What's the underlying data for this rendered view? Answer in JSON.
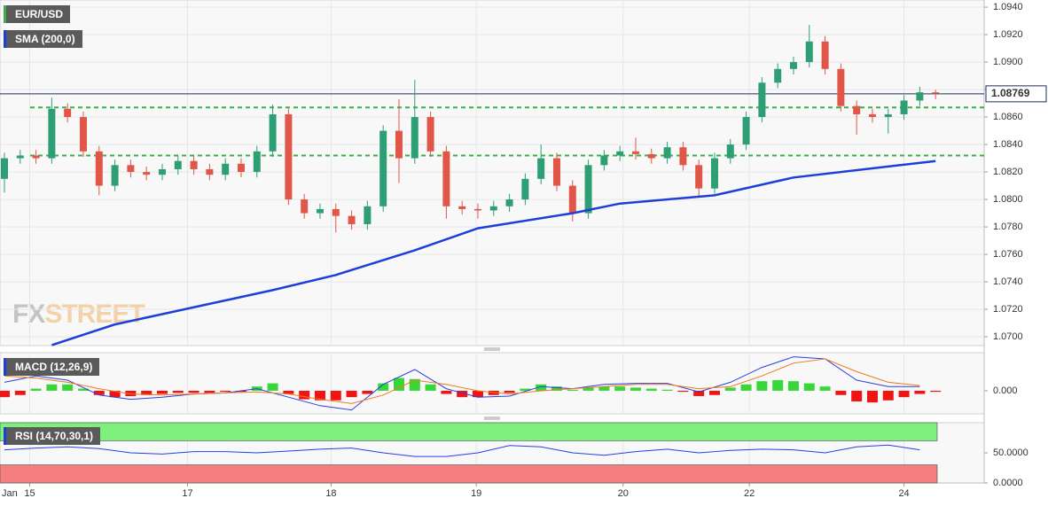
{
  "chart_data": [
    {
      "type": "candlestick",
      "name": "EUR/USD",
      "up_color": "#2e9e74",
      "down_color": "#e0574a",
      "open": [
        1.0815,
        1.083,
        1.0832,
        1.083,
        1.0866,
        1.086,
        1.0835,
        1.081,
        1.0825,
        1.082,
        1.0818,
        1.0822,
        1.0828,
        1.0822,
        1.0818,
        1.0826,
        1.082,
        1.0835,
        1.0862,
        1.08,
        1.079,
        1.0793,
        1.0788,
        1.0782,
        1.0795,
        1.085,
        1.083,
        1.086,
        1.0835,
        1.0795,
        1.0793,
        1.0792,
        1.0795,
        1.08,
        1.0815,
        1.083,
        1.081,
        1.079,
        1.0825,
        1.0832,
        1.0835,
        1.0833,
        1.083,
        1.0838,
        1.0825,
        1.0808,
        1.083,
        1.084,
        1.086,
        1.0885,
        1.0895,
        1.09,
        1.0915,
        1.0895,
        1.0868,
        1.0862,
        1.086,
        1.0862,
        1.0872,
        1.0878
      ],
      "high": [
        1.0834,
        1.0836,
        1.0836,
        1.0874,
        1.087,
        1.0864,
        1.0839,
        1.0829,
        1.0829,
        1.0824,
        1.0826,
        1.0832,
        1.0832,
        1.0826,
        1.083,
        1.083,
        1.0839,
        1.0869,
        1.0866,
        1.0804,
        1.0797,
        1.0797,
        1.0792,
        1.0799,
        1.0854,
        1.0873,
        1.0887,
        1.0864,
        1.0839,
        1.0799,
        1.0797,
        1.0799,
        1.0804,
        1.0819,
        1.084,
        1.0834,
        1.0814,
        1.0829,
        1.0836,
        1.0839,
        1.0845,
        1.0837,
        1.0842,
        1.0842,
        1.0829,
        1.0834,
        1.0844,
        1.0864,
        1.0889,
        1.0899,
        1.0904,
        1.0927,
        1.0919,
        1.0899,
        1.0872,
        1.0866,
        1.0866,
        1.0876,
        1.0882,
        1.088
      ],
      "low": [
        1.0805,
        1.0826,
        1.0826,
        1.0826,
        1.0856,
        1.0831,
        1.0803,
        1.0806,
        1.0816,
        1.0814,
        1.0814,
        1.0818,
        1.0818,
        1.0814,
        1.0814,
        1.0816,
        1.0816,
        1.0831,
        1.0796,
        1.0786,
        1.0786,
        1.0776,
        1.0778,
        1.0778,
        1.0791,
        1.0812,
        1.0826,
        1.0831,
        1.0786,
        1.0789,
        1.0786,
        1.0788,
        1.0791,
        1.0796,
        1.0811,
        1.0806,
        1.0784,
        1.0786,
        1.0821,
        1.0828,
        1.0829,
        1.0826,
        1.0826,
        1.0821,
        1.0802,
        1.0804,
        1.0826,
        1.0836,
        1.0856,
        1.0881,
        1.0891,
        1.0896,
        1.0891,
        1.0864,
        1.0847,
        1.0856,
        1.0848,
        1.0858,
        1.0868,
        1.0873
      ],
      "close": [
        1.083,
        1.0832,
        1.083,
        1.0866,
        1.086,
        1.0835,
        1.081,
        1.0825,
        1.082,
        1.0818,
        1.0822,
        1.0828,
        1.0822,
        1.0818,
        1.0826,
        1.082,
        1.0835,
        1.0862,
        1.08,
        1.079,
        1.0793,
        1.0788,
        1.0782,
        1.0795,
        1.085,
        1.083,
        1.086,
        1.0835,
        1.0795,
        1.0793,
        1.0792,
        1.0795,
        1.08,
        1.0815,
        1.083,
        1.081,
        1.079,
        1.0825,
        1.0832,
        1.0835,
        1.0833,
        1.083,
        1.0838,
        1.0825,
        1.0808,
        1.083,
        1.084,
        1.086,
        1.0885,
        1.0895,
        1.09,
        1.0915,
        1.0895,
        1.0868,
        1.0862,
        1.086,
        1.0862,
        1.0872,
        1.0878,
        1.0877
      ],
      "overlay": {
        "name": "SMA (200,0)",
        "color": "#1d3fd8",
        "x": [
          3,
          7,
          17,
          21,
          26,
          30,
          36,
          39,
          45,
          50,
          56,
          59
        ],
        "values": [
          1.0694,
          1.0709,
          1.0734,
          1.0745,
          1.0763,
          1.0779,
          1.079,
          1.0797,
          1.0803,
          1.0816,
          1.0824,
          1.0828
        ]
      },
      "levels": [
        1.0867,
        1.0832
      ],
      "level_color": "#3cb043",
      "last_price": 1.08769,
      "last_color": "#1b2d57",
      "ylim": [
        1.06936,
        1.09452
      ],
      "yticks": [
        {
          "value": 1.07,
          "label": "1.0700"
        },
        {
          "value": 1.072,
          "label": "1.0720"
        },
        {
          "value": 1.074,
          "label": "1.0740"
        },
        {
          "value": 1.076,
          "label": "1.0760"
        },
        {
          "value": 1.078,
          "label": "1.0780"
        },
        {
          "value": 1.08,
          "label": "1.0800"
        },
        {
          "value": 1.082,
          "label": "1.0820"
        },
        {
          "value": 1.084,
          "label": "1.0840"
        },
        {
          "value": 1.086,
          "label": "1.0860"
        },
        {
          "value": 1.088,
          "label": "1.0880"
        },
        {
          "value": 1.09,
          "label": "1.0900"
        },
        {
          "value": 1.092,
          "label": "1.0920"
        },
        {
          "value": 1.094,
          "label": "1.0940"
        }
      ],
      "grid": true,
      "watermark": {
        "fx": "FX",
        "street": "STREET"
      }
    },
    {
      "type": "macd",
      "name": "MACD (12,26,9)",
      "up_color": "#39d63a",
      "down_color": "#f01414",
      "histogram": [
        -0.0006,
        -0.0004,
        0.0002,
        0.0006,
        0.0006,
        0.0002,
        -0.0004,
        -0.0006,
        -0.0005,
        -0.0004,
        -0.0003,
        -0.0002,
        -0.0002,
        -0.0002,
        -0.0001,
        -0.0001,
        0.0004,
        0.0007,
        -0.0003,
        -0.0008,
        -0.0009,
        -0.0009,
        -0.0006,
        -0.0003,
        0.0007,
        0.0012,
        0.0011,
        0.0006,
        -0.0003,
        -0.0006,
        -0.0006,
        -0.0004,
        -0.0002,
        0.0002,
        0.0006,
        0.0004,
        0.0001,
        0.0003,
        0.0004,
        0.0004,
        0.0003,
        0.0002,
        0.0001,
        -0.0001,
        -0.0005,
        -0.0004,
        0.0003,
        0.0006,
        0.0009,
        0.001,
        0.0009,
        0.0007,
        0.0004,
        -0.0004,
        -0.001,
        -0.0011,
        -0.0009,
        -0.0006,
        -0.0003,
        -0.0001
      ],
      "series": [
        {
          "color": "#2840e0",
          "x": [
            0,
            2,
            4,
            6,
            8,
            10,
            12,
            14,
            16,
            18,
            20,
            22,
            24,
            26,
            28,
            30,
            32,
            34,
            36,
            38,
            40,
            42,
            44,
            46,
            48,
            50,
            52,
            54,
            56,
            58
          ],
          "values": [
            0.0008,
            0.0014,
            0.001,
            -0.0004,
            -0.0008,
            -0.0006,
            -0.0003,
            -0.0002,
            0.0002,
            -0.0006,
            -0.0014,
            -0.0018,
            0.0006,
            0.002,
            0.0002,
            -0.0006,
            -0.0005,
            0.0004,
            0.0002,
            0.0006,
            0.0007,
            0.0007,
            -0.0001,
            0.0008,
            0.0022,
            0.0032,
            0.003,
            0.001,
            0.0004,
            0.0004
          ]
        },
        {
          "color": "#f07a1e",
          "x": [
            0,
            2,
            4,
            6,
            8,
            10,
            12,
            14,
            16,
            18,
            20,
            22,
            24,
            26,
            28,
            30,
            32,
            34,
            36,
            38,
            40,
            42,
            44,
            46,
            48,
            50,
            52,
            54,
            56,
            58
          ],
          "values": [
            0.0014,
            0.0012,
            0.0008,
            0.0002,
            -0.0003,
            -0.0004,
            -0.0003,
            -0.0002,
            -0.0001,
            -0.0003,
            -0.0008,
            -0.0012,
            -0.0004,
            0.001,
            0.0006,
            0.0,
            -0.0003,
            0.0,
            0.0002,
            0.0004,
            0.0006,
            0.0006,
            0.0002,
            0.0004,
            0.0014,
            0.0026,
            0.003,
            0.0018,
            0.0008,
            0.0005
          ]
        }
      ],
      "ylim": [
        -0.00217,
        0.00358
      ],
      "yticks": [
        {
          "value": 0,
          "label": "0.000"
        }
      ]
    },
    {
      "type": "line",
      "name": "RSI (14,70,30,1)",
      "line": {
        "color": "#2840e0",
        "x": [
          0,
          2,
          4,
          6,
          8,
          10,
          12,
          14,
          16,
          18,
          20,
          22,
          24,
          26,
          28,
          30,
          32,
          34,
          36,
          38,
          40,
          42,
          44,
          46,
          48,
          50,
          52,
          54,
          56,
          58
        ],
        "values": [
          55,
          58,
          60,
          57,
          50,
          48,
          52,
          52,
          50,
          53,
          56,
          58,
          50,
          44,
          44,
          50,
          62,
          60,
          50,
          46,
          52,
          56,
          50,
          54,
          56,
          55,
          50,
          60,
          63,
          55
        ]
      },
      "bands": [
        {
          "from": 70,
          "to": 100,
          "color": "#7ef07e"
        },
        {
          "from": 0,
          "to": 30,
          "color": "#f57f7f"
        }
      ],
      "ylim": [
        0,
        100
      ],
      "yticks": [
        {
          "value": 50,
          "label": "50.0000"
        },
        {
          "value": 0,
          "label": "0.0000"
        }
      ],
      "xlim": [
        -0.28,
        62.08
      ],
      "month_label": "Jan",
      "xticks": [
        {
          "value": 1.6,
          "label": "15"
        },
        {
          "value": 11.6,
          "label": "17"
        },
        {
          "value": 20.7,
          "label": "18"
        },
        {
          "value": 29.9,
          "label": "19"
        },
        {
          "value": 39.2,
          "label": "20"
        },
        {
          "value": 47.2,
          "label": "22"
        },
        {
          "value": 57.0,
          "label": "24"
        }
      ]
    }
  ]
}
